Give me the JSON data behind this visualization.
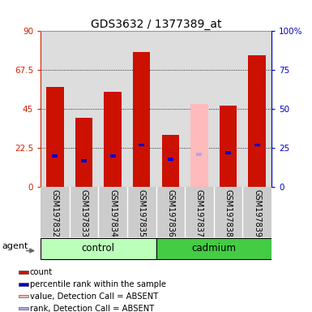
{
  "title": "GDS3632 / 1377389_at",
  "samples": [
    "GSM197832",
    "GSM197833",
    "GSM197834",
    "GSM197835",
    "GSM197836",
    "GSM197837",
    "GSM197838",
    "GSM197839"
  ],
  "bar_heights": [
    58,
    40,
    55,
    78,
    30,
    48,
    47,
    76
  ],
  "bar_colors": [
    "#cc1100",
    "#cc1100",
    "#cc1100",
    "#cc1100",
    "#cc1100",
    "#ffbbbb",
    "#cc1100",
    "#cc1100"
  ],
  "rank_values": [
    20,
    17,
    20,
    27,
    18,
    21,
    22,
    27
  ],
  "rank_colors": [
    "#0000cc",
    "#0000cc",
    "#0000cc",
    "#0000cc",
    "#0000cc",
    "#aaaaee",
    "#0000cc",
    "#0000cc"
  ],
  "ylim_left": [
    0,
    90
  ],
  "ylim_right": [
    0,
    100
  ],
  "yticks_left": [
    0,
    22.5,
    45,
    67.5,
    90
  ],
  "ytick_labels_left": [
    "0",
    "22.5",
    "45",
    "67.5",
    "90"
  ],
  "yticks_right": [
    0,
    25,
    50,
    75,
    100
  ],
  "ytick_labels_right": [
    "0",
    "25",
    "50",
    "75",
    "100%"
  ],
  "groups": [
    {
      "label": "control",
      "start": 0,
      "end": 4,
      "color": "#bbffbb"
    },
    {
      "label": "cadmium",
      "start": 4,
      "end": 8,
      "color": "#44cc44"
    }
  ],
  "agent_label": "agent",
  "left_axis_color": "#cc2200",
  "right_axis_color": "#0000cc",
  "background_color": "#ffffff",
  "legend_items": [
    {
      "label": "count",
      "color": "#cc1100"
    },
    {
      "label": "percentile rank within the sample",
      "color": "#0000cc"
    },
    {
      "label": "value, Detection Call = ABSENT",
      "color": "#ffbbbb"
    },
    {
      "label": "rank, Detection Call = ABSENT",
      "color": "#aaaaee"
    }
  ]
}
